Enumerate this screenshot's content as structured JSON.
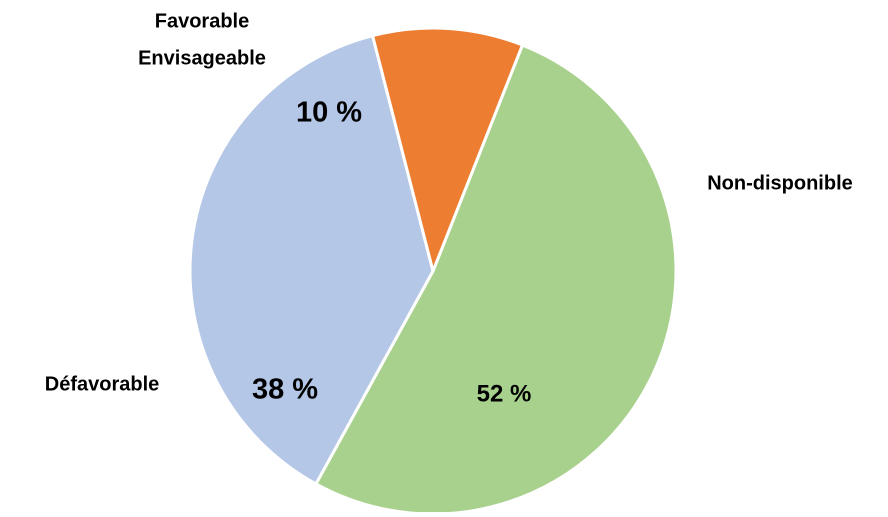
{
  "chart_data": {
    "type": "pie",
    "title": "",
    "slices": [
      {
        "label": "Non-disponible",
        "value": 52,
        "value_label": "52 %",
        "color": "#a9d18e"
      },
      {
        "label": "Défavorable",
        "value": 38,
        "value_label": "38 %",
        "color": "#b4c7e7"
      },
      {
        "label": "Favorable Envisageable",
        "label_lines": [
          "Favorable",
          "Envisageable"
        ],
        "value": 10,
        "value_label": "10 %",
        "color": "#ed7d31"
      }
    ],
    "slice_border_color": "#ffffff"
  }
}
